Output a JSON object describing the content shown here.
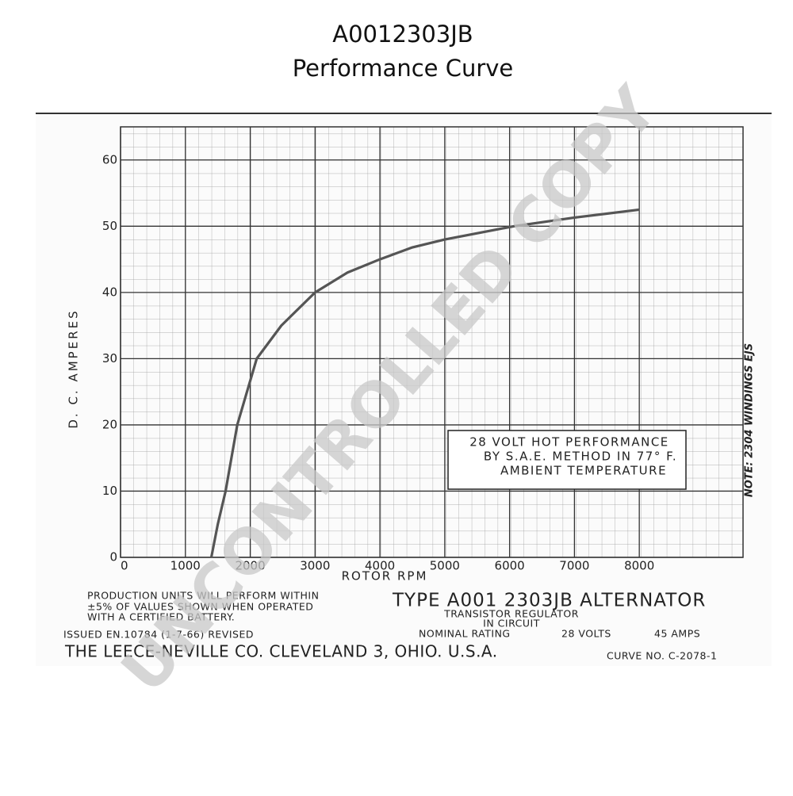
{
  "header": {
    "title": "A0012303JB",
    "subtitle": "Performance Curve"
  },
  "chart_data": {
    "type": "line",
    "x_label": "ROTOR RPM",
    "y_label": "D. C. AMPERES",
    "x": [
      1400,
      1500,
      1620,
      1800,
      2100,
      2480,
      3000,
      3500,
      4000,
      4500,
      5000,
      6070,
      7000,
      8000
    ],
    "series": [
      {
        "color": "#555555",
        "values": [
          0,
          5,
          10,
          20,
          30,
          35,
          40,
          43,
          45,
          46.8,
          48,
          50,
          51.3,
          52.5
        ]
      }
    ],
    "xlim": [
      0,
      9600
    ],
    "ylim": [
      0,
      65
    ],
    "xticks": [
      0,
      1000,
      2000,
      3000,
      4000,
      5000,
      6000,
      7000,
      8000
    ],
    "yticks": [
      0,
      10,
      20,
      30,
      40,
      50,
      60
    ],
    "grid": true,
    "annotations": [
      "28 VOLT HOT PERFORMANCE",
      "BY S.A.E. METHOD IN 77° F.",
      "AMBIENT TEMPERATURE"
    ],
    "note": "NOTE: 2304 WINDINGS EJS"
  },
  "footer": {
    "production": [
      "PRODUCTION UNITS WILL PERFORM WITHIN",
      "±5% OF VALUES SHOWN WHEN OPERATED",
      "WITH A CERTIFIED BATTERY."
    ],
    "type": "TYPE A001 2303JB ALTERNATOR",
    "regulator": [
      "TRANSISTOR REGULATOR",
      "IN CIRCUIT"
    ],
    "issued": "ISSUED EN.10784 (1-7-66) REVISED",
    "rating": "NOMINAL RATING",
    "volts": "28 VOLTS",
    "amps": "45 AMPS",
    "company": "THE LEECE-NEVILLE CO. CLEVELAND 3, OHIO. U.S.A.",
    "curve_no": "CURVE NO. C-2078-1"
  },
  "watermark": "UNCONTROLLED COPY"
}
